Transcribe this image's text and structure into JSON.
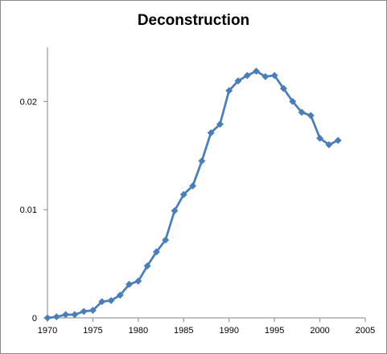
{
  "chart_data": {
    "type": "line",
    "title": "Deconstruction",
    "xlabel": "",
    "ylabel": "",
    "xlim": [
      1970,
      2005
    ],
    "ylim": [
      0,
      0.025
    ],
    "x_ticks": [
      "1970",
      "1975",
      "1980",
      "1985",
      "1990",
      "1995",
      "2000",
      "2005"
    ],
    "y_ticks": [
      "0",
      "0.01",
      "0.02"
    ],
    "grid": false,
    "legend": "none",
    "series": [
      {
        "color": "#4a7ebb",
        "marker": "diamond",
        "x": [
          1970,
          1971,
          1972,
          1973,
          1974,
          1975,
          1976,
          1977,
          1978,
          1979,
          1980,
          1981,
          1982,
          1983,
          1984,
          1985,
          1986,
          1987,
          1988,
          1989,
          1990,
          1991,
          1992,
          1993,
          1994,
          1995,
          1996,
          1997,
          1998,
          1999,
          2000,
          2001,
          2002
        ],
        "y": [
          0.0,
          0.0001,
          0.0003,
          0.0003,
          0.0006,
          0.0007,
          0.0015,
          0.0016,
          0.0021,
          0.0031,
          0.0034,
          0.0048,
          0.0061,
          0.0072,
          0.0099,
          0.0114,
          0.0122,
          0.0145,
          0.0171,
          0.0179,
          0.021,
          0.0219,
          0.0224,
          0.0228,
          0.0223,
          0.0224,
          0.0212,
          0.02,
          0.019,
          0.0187,
          0.0166,
          0.016,
          0.0164
        ]
      }
    ]
  }
}
